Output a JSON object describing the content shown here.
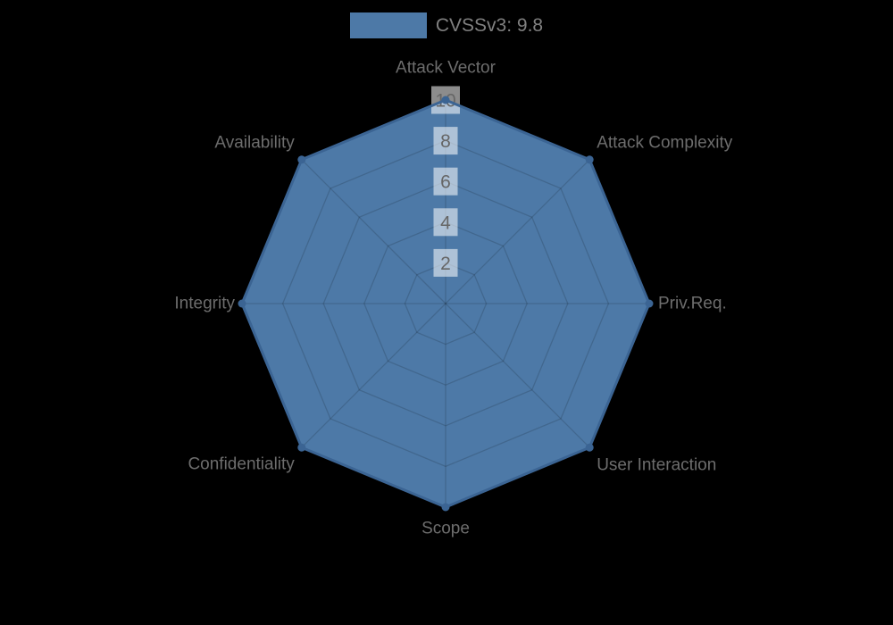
{
  "page": {
    "background": "#000000"
  },
  "legend": {
    "label": "CVSSv3: 9.8"
  },
  "chart_data": {
    "type": "radar",
    "categories": [
      "Attack Vector",
      "Attack Complexity",
      "Priv.Req.",
      "User Interaction",
      "Scope",
      "Confidentiality",
      "Integrity",
      "Availability"
    ],
    "series": [
      {
        "name": "CVSSv3: 9.8",
        "values": [
          10,
          10,
          10,
          10,
          10,
          10,
          10,
          10
        ]
      }
    ],
    "scale": {
      "min": 0,
      "max": 10,
      "ticks": [
        2,
        4,
        6,
        8,
        10
      ]
    },
    "grid": true,
    "legend_position": "top",
    "colors": {
      "fill": "#4d79a7",
      "border": "#3b6493",
      "grid": "rgba(0,0,0,0.15)",
      "tick_text": "#666666",
      "tick_backdrop": "rgba(255,255,255,0.55)",
      "label_text": "#6d6d6d",
      "legend_text": "#808080"
    }
  }
}
